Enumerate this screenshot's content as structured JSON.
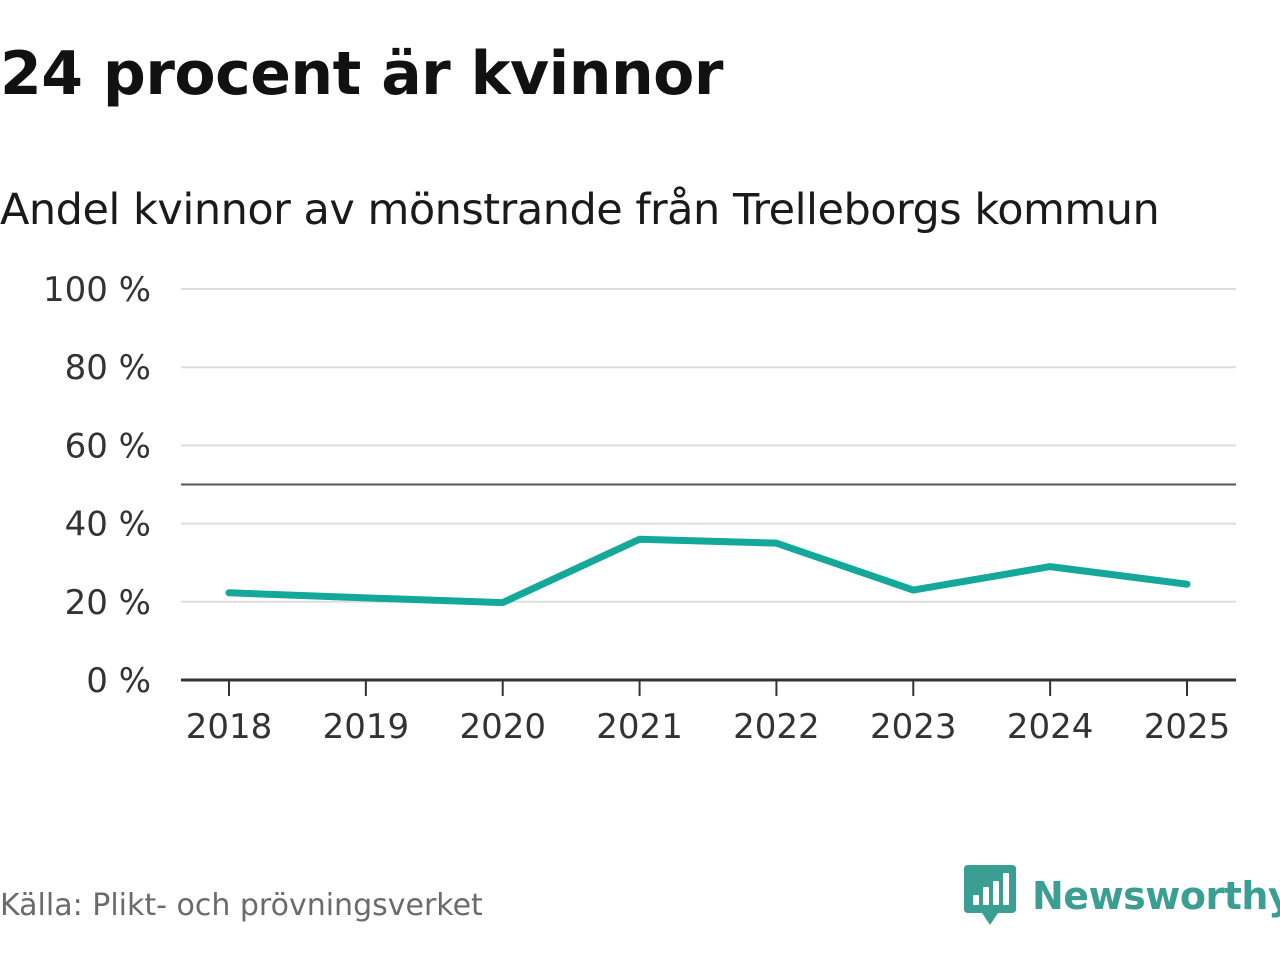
{
  "colors": {
    "line": "#14a89b",
    "grid": "#dddddd",
    "reference": "#555555",
    "axis": "#333333",
    "brand": "#3a9f92"
  },
  "source": "Källa: Plikt- och prövningsverket",
  "brand": {
    "name": "Newsworthy",
    "icon": "newsworthy-logo-icon"
  },
  "chart_data": {
    "type": "line",
    "title": "24 procent är kvinnor",
    "subtitle": "Andel kvinnor av mönstrande från Trelleborgs kommun",
    "xlabel": "",
    "ylabel": "",
    "x": [
      "2018",
      "2019",
      "2020",
      "2021",
      "2022",
      "2023",
      "2024",
      "2025"
    ],
    "series": [
      {
        "values": [
          22.3,
          21,
          19.8,
          36,
          35,
          23,
          29,
          24.5
        ]
      }
    ],
    "ylim": [
      0,
      100
    ],
    "yticks": [
      0,
      20,
      40,
      60,
      80,
      100
    ],
    "ytick_labels": [
      "0 %",
      "20 %",
      "40 %",
      "60 %",
      "80 %",
      "100 %"
    ],
    "reference_line": 50,
    "grid": true,
    "legend": "none"
  }
}
